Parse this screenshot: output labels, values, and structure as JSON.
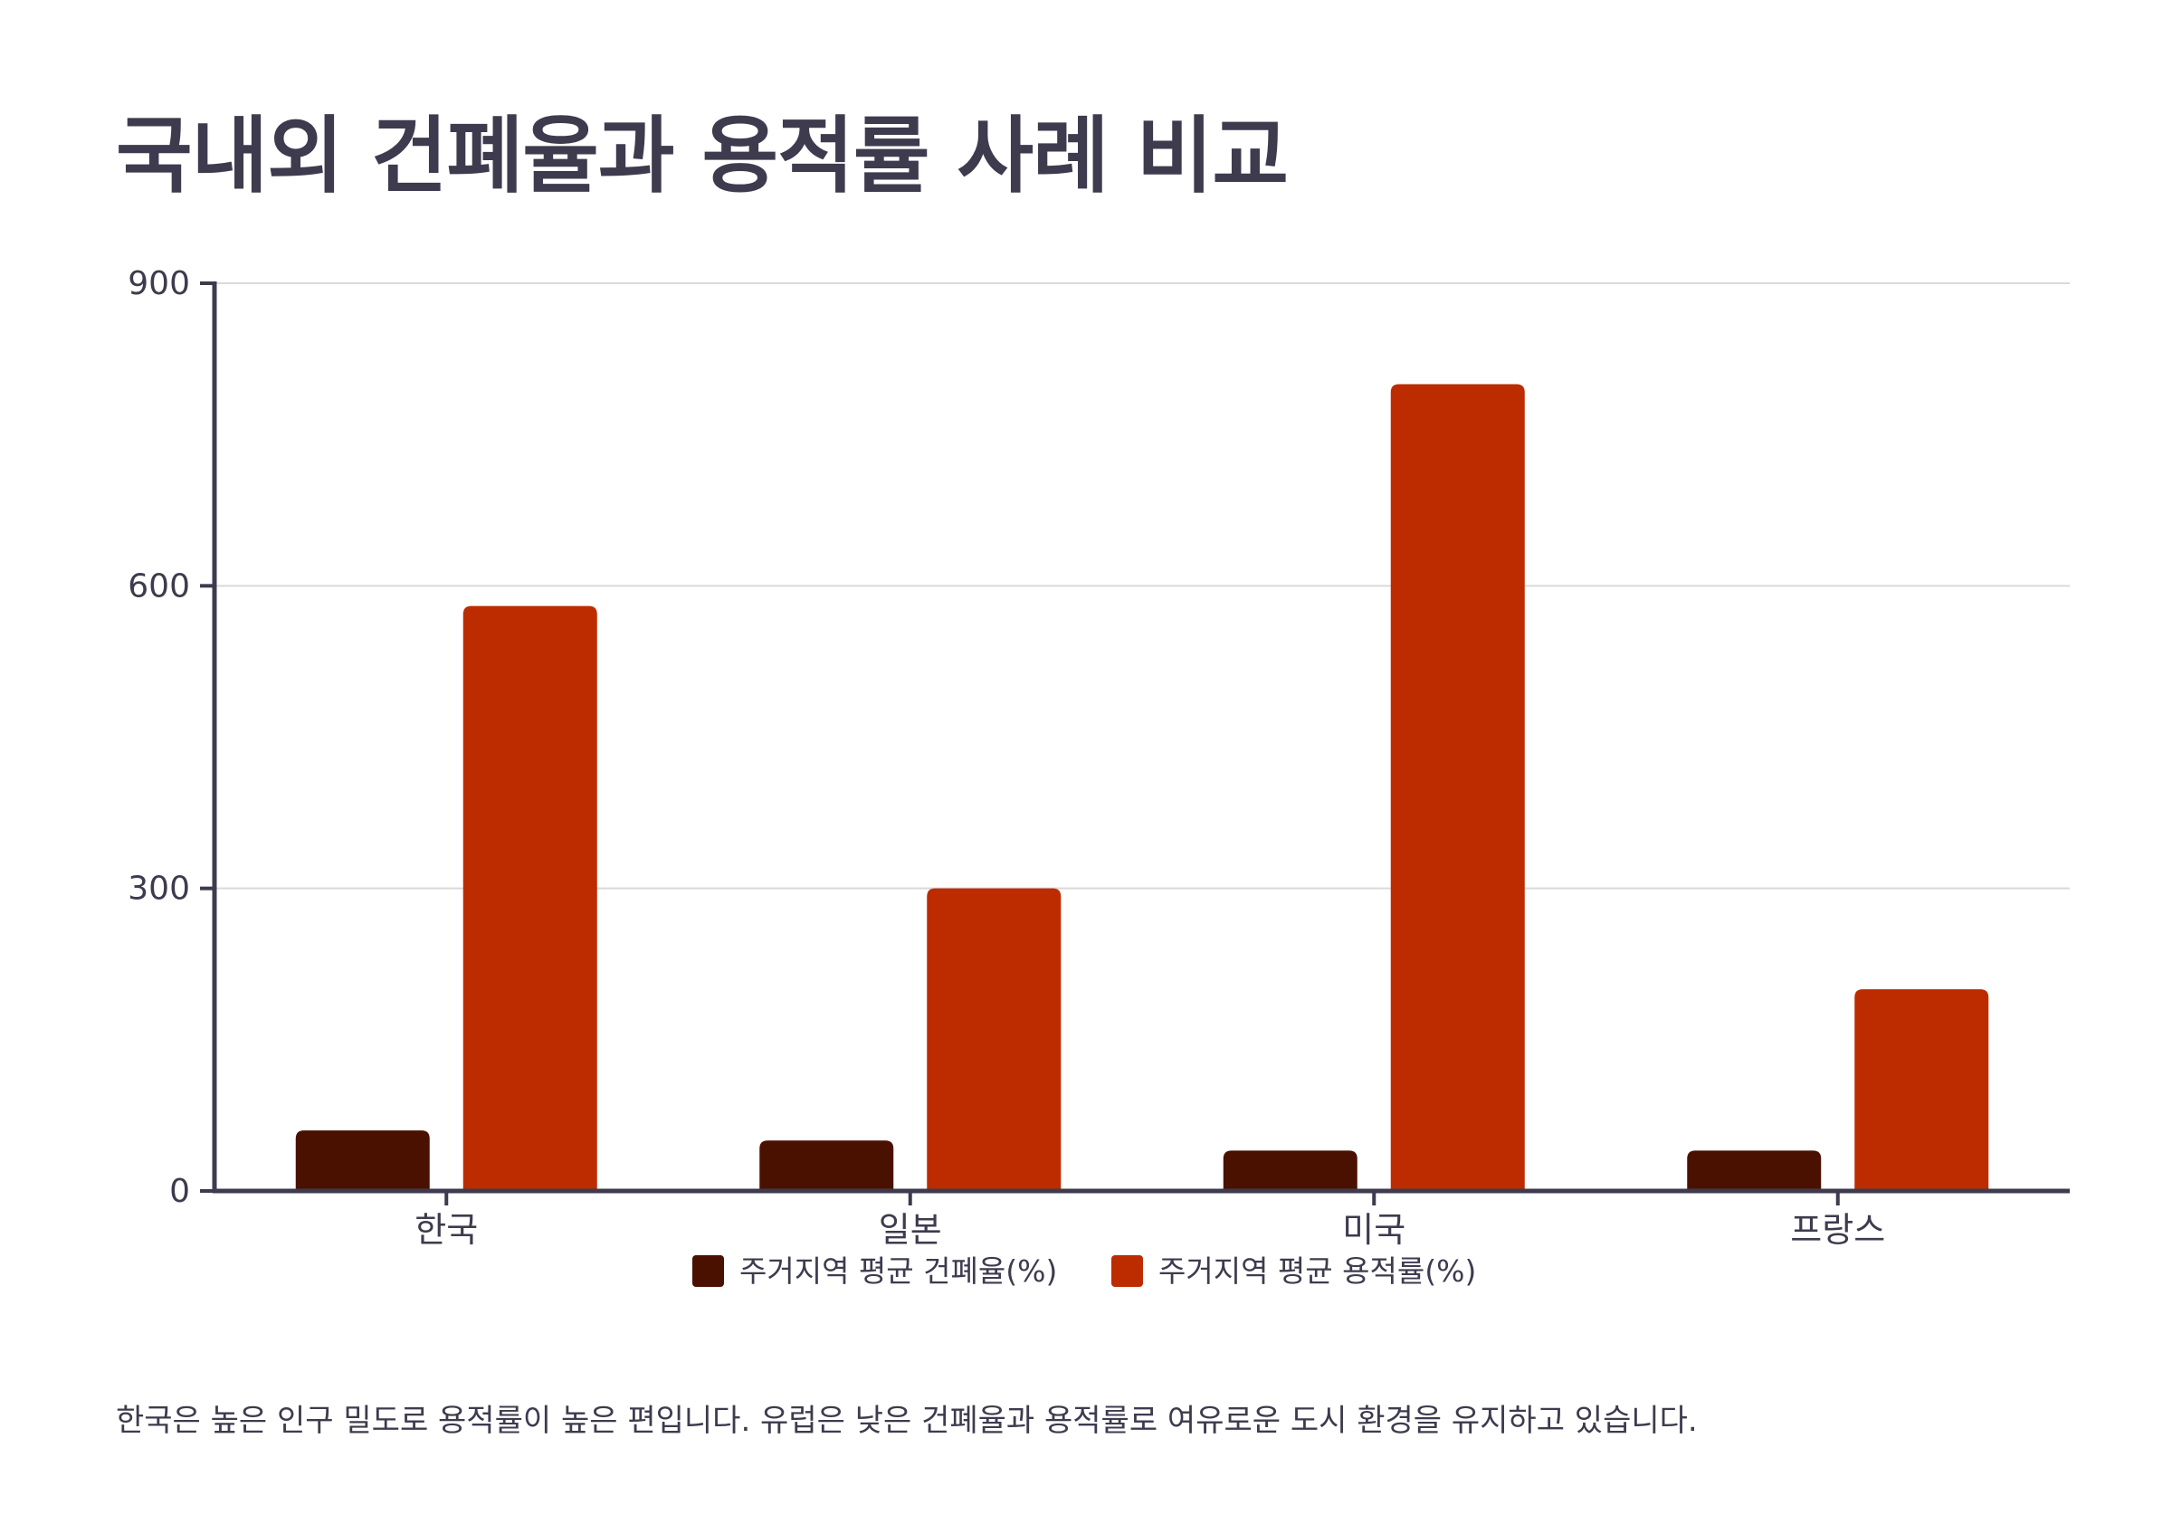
{
  "title": "국내외 건폐율과 용적률 사례 비교",
  "caption": "한국은 높은 인구 밀도로 용적률이 높은 편입니다. 유럽은 낮은 건폐율과 용적률로 여유로운 도시 환경을 유지하고 있습니다.",
  "colors": {
    "series1": "#4a1100",
    "series2": "#bc2c00",
    "axis": "#3d3b4d",
    "grid": "#d9d9d9",
    "text": "#3d3b4d"
  },
  "chart_data": {
    "type": "bar",
    "title": "국내외 건폐율과 용적률 사례 비교",
    "categories": [
      "한국",
      "일본",
      "미국",
      "프랑스"
    ],
    "series": [
      {
        "name": "주거지역 평균 건폐율(%)",
        "values": [
          60,
          50,
          40,
          40
        ]
      },
      {
        "name": "주거지역 평균 용적률(%)",
        "values": [
          580,
          300,
          800,
          200
        ]
      }
    ],
    "xlabel": "",
    "ylabel": "",
    "ylim": [
      0,
      900
    ],
    "yticks": [
      0,
      300,
      600,
      900
    ],
    "grid": true,
    "legend": "bottom"
  }
}
